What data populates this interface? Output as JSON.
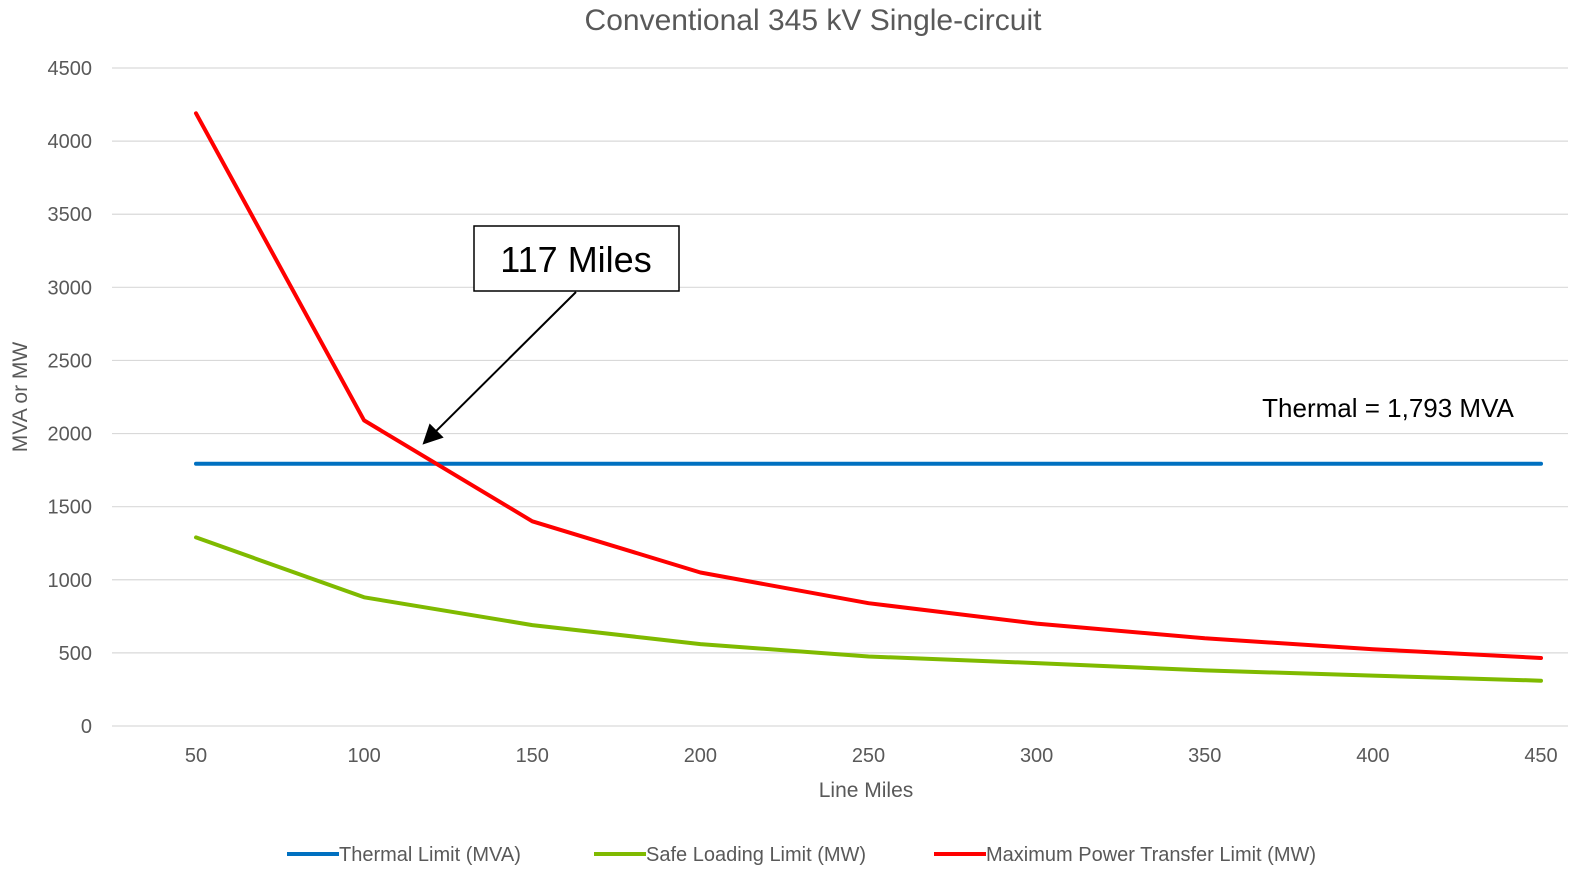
{
  "chart_data": {
    "type": "line",
    "title": "Conventional 345 kV Single-circuit",
    "xlabel": "Line Miles",
    "ylabel": "MVA or MW",
    "x": [
      50,
      100,
      150,
      200,
      250,
      300,
      350,
      400,
      450
    ],
    "ylim": [
      0,
      4500
    ],
    "yticks": [
      "0",
      "500",
      "1000",
      "1500",
      "2000",
      "2500",
      "3000",
      "3500",
      "4000",
      "4500"
    ],
    "xticks": [
      "50",
      "100",
      "150",
      "200",
      "250",
      "300",
      "350",
      "400",
      "450"
    ],
    "grid": true,
    "legend_position": "bottom",
    "series": [
      {
        "name": "Thermal Limit (MVA)",
        "color": "#0070C0",
        "values": [
          1793,
          1793,
          1793,
          1793,
          1793,
          1793,
          1793,
          1793,
          1793
        ]
      },
      {
        "name": "Safe Loading Limit (MW)",
        "color": "#7FBA00",
        "values": [
          1290,
          880,
          690,
          560,
          475,
          430,
          380,
          345,
          310
        ]
      },
      {
        "name": "Maximum Power Transfer Limit (MW)",
        "color": "#FF0000",
        "values": [
          4190,
          2090,
          1400,
          1050,
          840,
          700,
          600,
          525,
          465
        ]
      }
    ],
    "annotations": {
      "callout_text": "117 Miles",
      "callout_target": {
        "x": 117,
        "y": 1793
      },
      "thermal_text": "Thermal = 1,793 MVA"
    }
  }
}
